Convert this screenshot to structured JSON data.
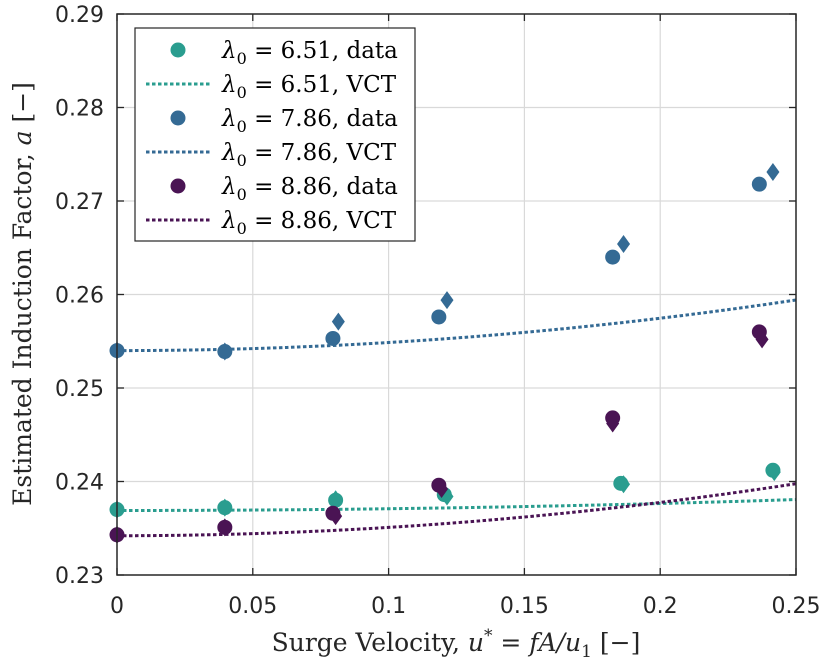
{
  "chart_data": {
    "type": "scatter",
    "title": "",
    "xlabel": {
      "prefix": "Surge Velocity, ",
      "var": "u",
      "sup": "*",
      "eq": " = ",
      "rhs_var": "fA/u",
      "rhs_sub": "1",
      "units": " [−]"
    },
    "ylabel": {
      "prefix": "Estimated Induction Factor, ",
      "var": "a",
      "units": " [−]"
    },
    "xlim": [
      0,
      0.25
    ],
    "ylim": [
      0.23,
      0.29
    ],
    "xticks": [
      0,
      0.05,
      0.1,
      0.15,
      0.2,
      0.25
    ],
    "xtick_labels": [
      "0",
      "0.05",
      "0.1",
      "0.15",
      "0.2",
      "0.25"
    ],
    "yticks": [
      0.23,
      0.24,
      0.25,
      0.26,
      0.27,
      0.28,
      0.29
    ],
    "ytick_labels": [
      "0.23",
      "0.24",
      "0.25",
      "0.26",
      "0.27",
      "0.28",
      "0.29"
    ],
    "grid": true,
    "legend_position": "top-left",
    "series": [
      {
        "name": "6.51",
        "color": "#2a9d8f",
        "circles": [
          [
            0,
            0.237
          ],
          [
            0.0397,
            0.2372
          ],
          [
            0.0805,
            0.238
          ],
          [
            0.1205,
            0.2386
          ],
          [
            0.1855,
            0.2398
          ],
          [
            0.2415,
            0.2412
          ]
        ],
        "diamonds": [
          [
            0,
            0.237
          ],
          [
            0.0397,
            0.2372
          ],
          [
            0.0805,
            0.2381
          ],
          [
            0.1215,
            0.2384
          ],
          [
            0.1865,
            0.2397
          ],
          [
            0.242,
            0.241
          ]
        ],
        "vct": {
          "a0": 0.2369,
          "k": 0.0789
        }
      },
      {
        "name": "7.86",
        "color": "#346a94",
        "circles": [
          [
            0,
            0.254
          ],
          [
            0.0397,
            0.2539
          ],
          [
            0.0795,
            0.2553
          ],
          [
            0.1185,
            0.2576
          ],
          [
            0.1825,
            0.264
          ],
          [
            0.2365,
            0.2718
          ]
        ],
        "diamonds": [
          [
            0,
            0.254
          ],
          [
            0.0397,
            0.2539
          ],
          [
            0.0815,
            0.2571
          ],
          [
            0.1215,
            0.2594
          ],
          [
            0.1865,
            0.2654
          ],
          [
            0.2415,
            0.2731
          ]
        ],
        "vct": {
          "a0": 0.254,
          "k": 0.3408
        }
      },
      {
        "name": "8.86",
        "color": "#4a1454",
        "circles": [
          [
            0,
            0.2343
          ],
          [
            0.0397,
            0.2351
          ],
          [
            0.0795,
            0.2366
          ],
          [
            0.1185,
            0.2396
          ],
          [
            0.1825,
            0.2468
          ],
          [
            0.2365,
            0.256
          ]
        ],
        "diamonds": [
          [
            0,
            0.2343
          ],
          [
            0.0397,
            0.2351
          ],
          [
            0.0805,
            0.2363
          ],
          [
            0.1195,
            0.2392
          ],
          [
            0.1825,
            0.2462
          ],
          [
            0.2375,
            0.2552
          ]
        ],
        "vct": {
          "a0": 0.2342,
          "k": 0.38
        }
      }
    ],
    "legend": [
      {
        "symbol": "λ",
        "sub": "0",
        "text": " = 6.51, data",
        "kind": "marker",
        "series": 0
      },
      {
        "symbol": "λ",
        "sub": "0",
        "text": " = 6.51, VCT",
        "kind": "line",
        "series": 0
      },
      {
        "symbol": "λ",
        "sub": "0",
        "text": " = 7.86, data",
        "kind": "marker",
        "series": 1
      },
      {
        "symbol": "λ",
        "sub": "0",
        "text": " = 7.86, VCT",
        "kind": "line",
        "series": 1
      },
      {
        "symbol": "λ",
        "sub": "0",
        "text": " = 8.86, data",
        "kind": "marker",
        "series": 2
      },
      {
        "symbol": "λ",
        "sub": "0",
        "text": " = 8.86, VCT",
        "kind": "line",
        "series": 2
      }
    ]
  }
}
